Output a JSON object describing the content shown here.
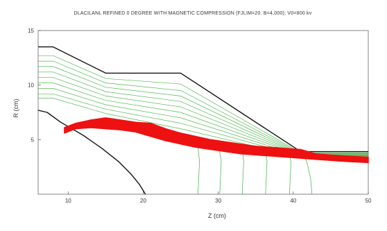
{
  "chart_data": {
    "type": "line",
    "title": "DLACILANL REFINED 0 DEGREE WITH MAGNETIC COMPRESSION (FJLIM=20. B=4,000); V0=800 kv",
    "xlabel": "Z (cm)",
    "ylabel": "R (cm)",
    "xlim": [
      6,
      50
    ],
    "ylim": [
      0,
      15
    ],
    "xticks": [
      "10",
      "20",
      "30",
      "40",
      "50"
    ],
    "yticks": [
      "5",
      "10",
      "15"
    ],
    "grid": false,
    "legend": "none",
    "colors": {
      "boundary": "#111111",
      "field_lines": "#33aa33",
      "beam": "#ee1111",
      "equipotentials": "#44aa44"
    },
    "boundaries": [
      {
        "id": "outer-electrode",
        "points": [
          [
            6,
            13.5
          ],
          [
            8,
            13.5
          ],
          [
            15,
            11.1
          ],
          [
            25,
            11.1
          ],
          [
            41,
            3.9
          ],
          [
            50,
            3.9
          ]
        ]
      },
      {
        "id": "cathode",
        "points": [
          [
            6,
            7.7
          ],
          [
            7.2,
            7.5
          ],
          [
            9,
            6.6
          ],
          [
            12,
            5.4
          ],
          [
            14.5,
            4.2
          ],
          [
            16.7,
            3.0
          ],
          [
            18.3,
            1.9
          ],
          [
            19.5,
            0.9
          ],
          [
            20.3,
            0
          ]
        ]
      }
    ],
    "field_lines": [
      [
        [
          6,
          12.7
        ],
        [
          8,
          12.7
        ],
        [
          15,
          10.6
        ],
        [
          25,
          10.1
        ],
        [
          41,
          3.8
        ],
        [
          50,
          3.8
        ]
      ],
      [
        [
          6,
          12.2
        ],
        [
          8,
          12.2
        ],
        [
          15,
          10.2
        ],
        [
          25,
          9.5
        ],
        [
          41,
          3.75
        ],
        [
          50,
          3.75
        ]
      ],
      [
        [
          6,
          11.7
        ],
        [
          8,
          11.7
        ],
        [
          15,
          9.8
        ],
        [
          25,
          9.0
        ],
        [
          41,
          3.7
        ],
        [
          50,
          3.7
        ]
      ],
      [
        [
          6,
          11.2
        ],
        [
          8,
          11.2
        ],
        [
          15,
          9.4
        ],
        [
          25,
          8.5
        ],
        [
          41,
          3.65
        ],
        [
          50,
          3.65
        ]
      ],
      [
        [
          6,
          10.7
        ],
        [
          8,
          10.7
        ],
        [
          15,
          9.0
        ],
        [
          25,
          8.0
        ],
        [
          41,
          3.6
        ],
        [
          50,
          3.6
        ]
      ],
      [
        [
          6,
          10.2
        ],
        [
          8,
          10.2
        ],
        [
          15,
          8.6
        ],
        [
          25,
          7.5
        ],
        [
          41,
          3.55
        ],
        [
          50,
          3.55
        ]
      ],
      [
        [
          6,
          9.7
        ],
        [
          8,
          9.7
        ],
        [
          15,
          8.2
        ],
        [
          25,
          7.0
        ],
        [
          41,
          3.5
        ],
        [
          50,
          3.5
        ]
      ],
      [
        [
          6,
          9.2
        ],
        [
          8,
          9.2
        ],
        [
          15,
          7.8
        ],
        [
          25,
          6.5
        ],
        [
          41,
          3.45
        ],
        [
          50,
          3.45
        ]
      ],
      [
        [
          6,
          8.8
        ],
        [
          8,
          8.8
        ],
        [
          15,
          7.4
        ],
        [
          25,
          6.0
        ],
        [
          41,
          3.4
        ],
        [
          50,
          3.4
        ]
      ]
    ],
    "beam": {
      "upper": [
        [
          9.5,
          6.1
        ],
        [
          11,
          6.5
        ],
        [
          13,
          6.8
        ],
        [
          15,
          7.0
        ],
        [
          17,
          6.8
        ],
        [
          19,
          6.6
        ],
        [
          21,
          6.5
        ],
        [
          23,
          6.0
        ],
        [
          25,
          5.6
        ],
        [
          27,
          5.3
        ],
        [
          29,
          5.0
        ],
        [
          31,
          4.8
        ],
        [
          33,
          4.6
        ],
        [
          35,
          4.4
        ],
        [
          37,
          4.3
        ],
        [
          39,
          4.2
        ],
        [
          41,
          4.1
        ],
        [
          43,
          3.7
        ],
        [
          45,
          3.6
        ],
        [
          47,
          3.5
        ],
        [
          50,
          3.4
        ]
      ],
      "lower": [
        [
          50,
          2.9
        ],
        [
          47,
          3.0
        ],
        [
          45,
          3.1
        ],
        [
          43,
          3.2
        ],
        [
          41,
          3.3
        ],
        [
          39,
          3.4
        ],
        [
          37,
          3.5
        ],
        [
          35,
          3.6
        ],
        [
          33,
          3.7
        ],
        [
          31,
          3.9
        ],
        [
          29,
          4.1
        ],
        [
          27,
          4.3
        ],
        [
          25,
          4.6
        ],
        [
          23,
          4.9
        ],
        [
          21,
          5.3
        ],
        [
          19,
          5.7
        ],
        [
          17,
          5.9
        ],
        [
          15,
          6.0
        ],
        [
          13,
          6.1
        ],
        [
          11,
          6.0
        ],
        [
          9.5,
          5.6
        ]
      ]
    },
    "equipotentials": [
      [
        [
          27.3,
          0
        ],
        [
          27.4,
          1.5
        ],
        [
          27.5,
          3.0
        ],
        [
          27.3,
          4.4
        ]
      ],
      [
        [
          30.2,
          0
        ],
        [
          30.3,
          1.5
        ],
        [
          30.4,
          3.0
        ],
        [
          30.1,
          4.3
        ]
      ],
      [
        [
          33.2,
          0
        ],
        [
          33.3,
          1.5
        ],
        [
          33.4,
          3.0
        ],
        [
          33.2,
          4.2
        ]
      ],
      [
        [
          36.3,
          0
        ],
        [
          36.4,
          1.5
        ],
        [
          36.5,
          3.0
        ],
        [
          36.3,
          4.0
        ]
      ],
      [
        [
          39.5,
          0
        ],
        [
          39.6,
          1.5
        ],
        [
          39.7,
          3.0
        ],
        [
          39.4,
          3.8
        ]
      ],
      [
        [
          42.5,
          0
        ],
        [
          42.3,
          1.5
        ],
        [
          41.8,
          3.0
        ],
        [
          41.2,
          3.8
        ]
      ]
    ]
  }
}
